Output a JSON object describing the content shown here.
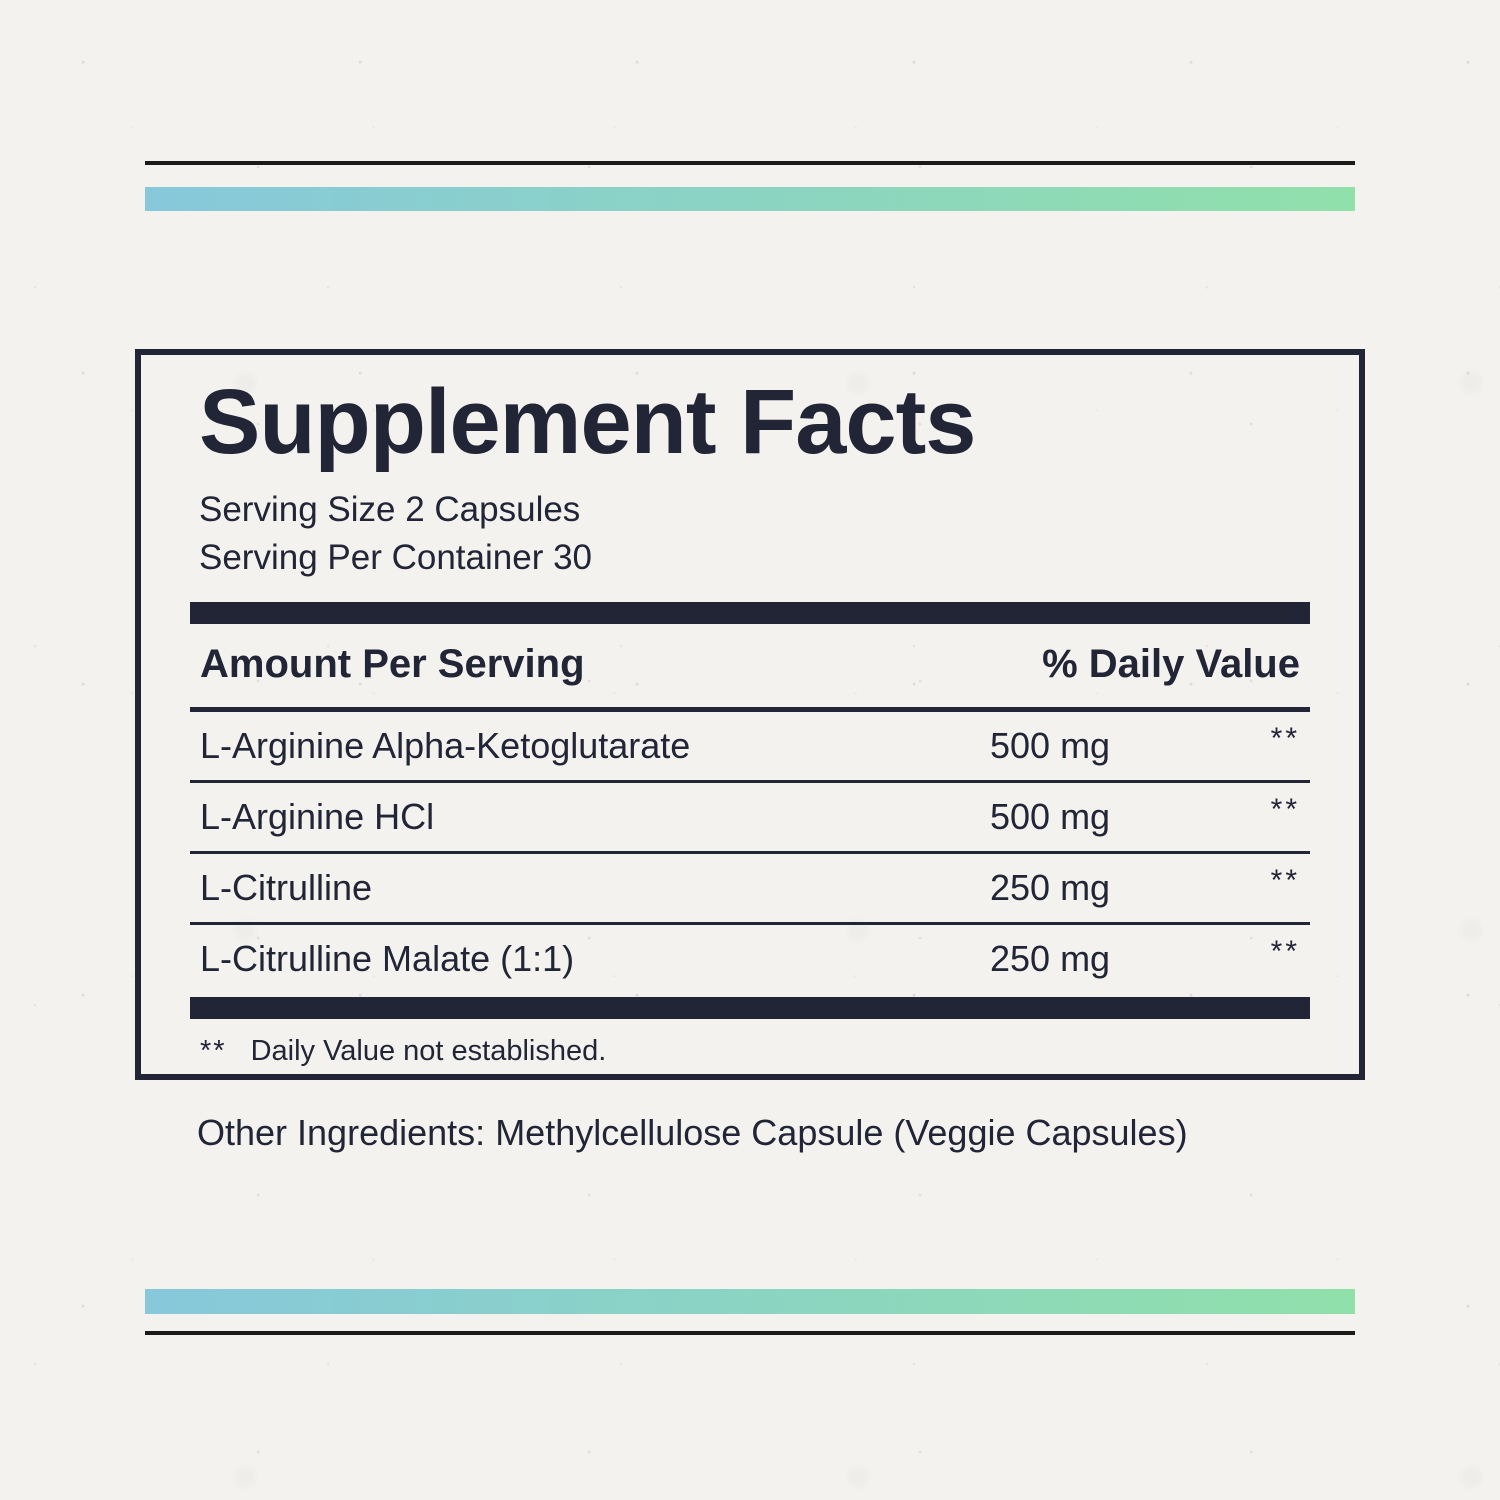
{
  "colors": {
    "paper": "#f3f2ef",
    "navy": "#212536",
    "rule": "#1a1a1a",
    "grad_start": "#87c8db",
    "grad_end": "#90e0aa"
  },
  "label": {
    "title": "Supplement Facts",
    "serving_size": "Serving Size 2 Capsules",
    "servings_per_container": "Serving Per Container 30",
    "table": {
      "col_amount": "Amount Per Serving",
      "col_dv": "% Daily Value",
      "rows": [
        {
          "name": "L-Arginine Alpha-Ketoglutarate",
          "amount": "500 mg",
          "dv": "**"
        },
        {
          "name": "L-Arginine HCl",
          "amount": "500 mg",
          "dv": "**"
        },
        {
          "name": "L-Citrulline",
          "amount": "250 mg",
          "dv": "**"
        },
        {
          "name": "L-Citrulline Malate (1:1)",
          "amount": "250 mg",
          "dv": "**"
        }
      ]
    },
    "footnote_symbol": "**",
    "footnote_text": "Daily Value not established.",
    "other_ingredients_label": "Other Ingredients:",
    "other_ingredients_value": "Methylcellulose Capsule (Veggie Capsules)"
  }
}
